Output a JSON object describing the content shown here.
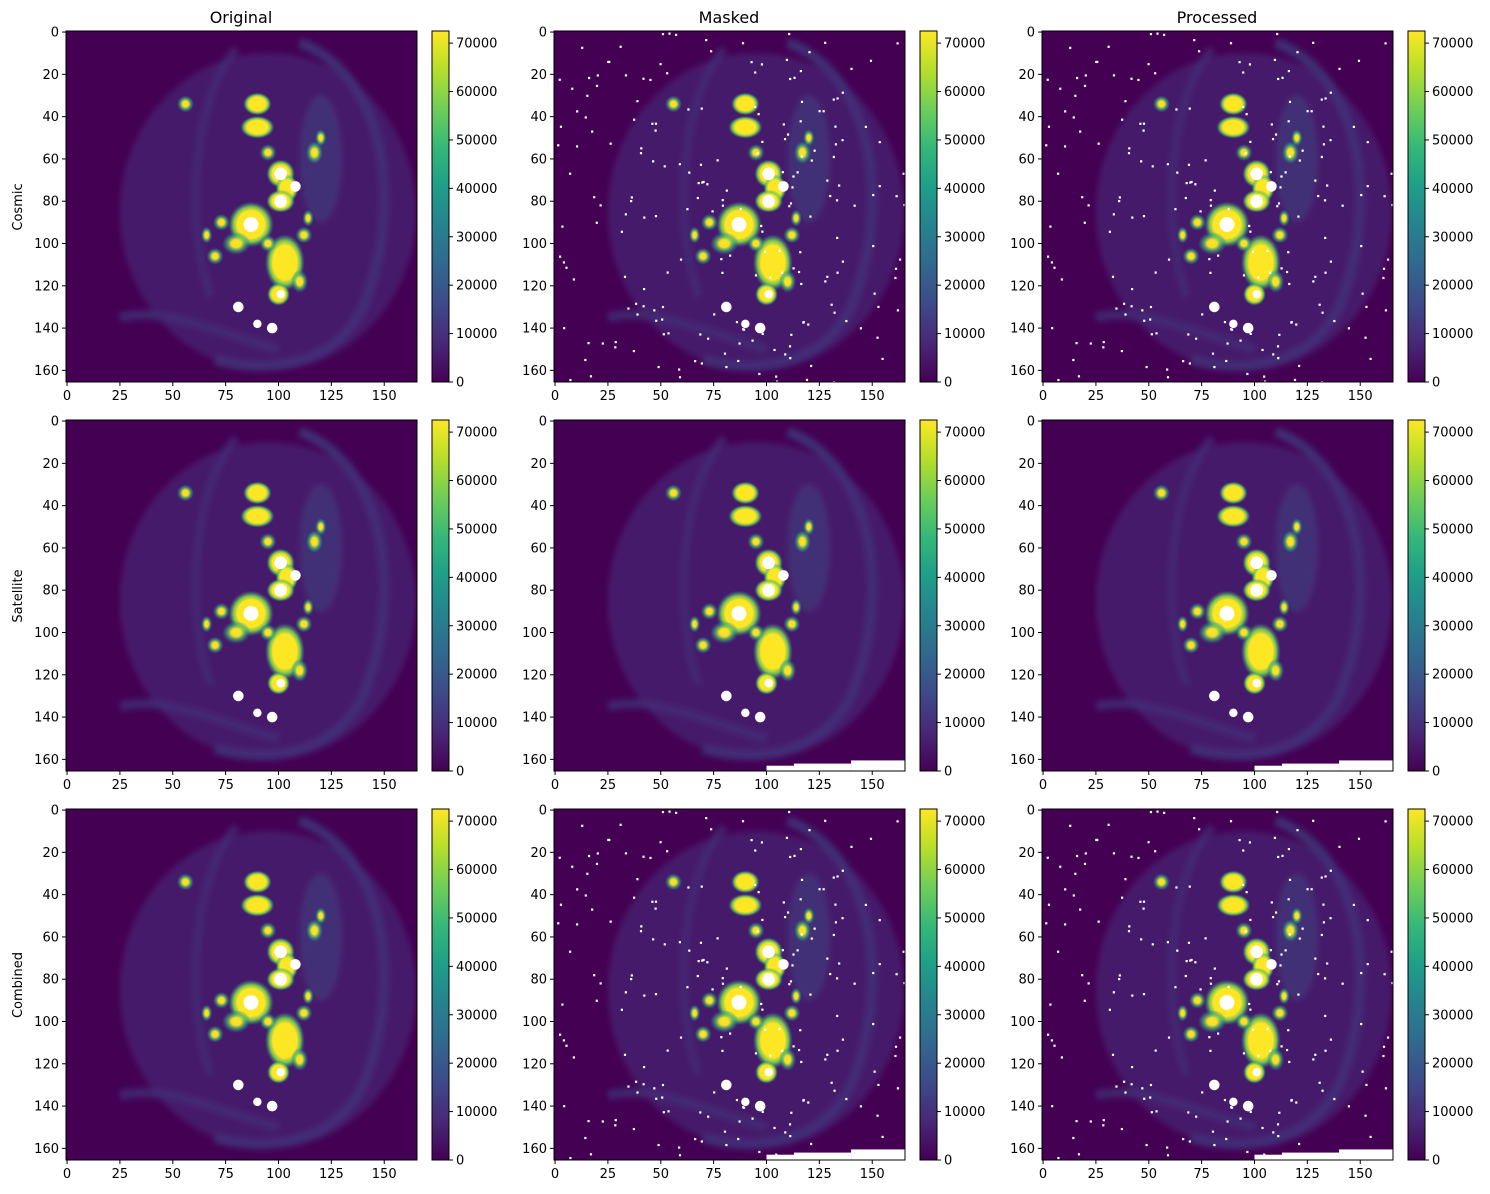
{
  "figure": {
    "column_titles": [
      "Original",
      "Masked",
      "Processed"
    ],
    "row_labels": [
      "Cosmic",
      "Satellite",
      "Combined"
    ]
  },
  "colors": {
    "colormap": "viridis",
    "masked_pixel": "#ffffff"
  },
  "chart_data": {
    "type": "heatmap",
    "image_size": [
      166,
      166
    ],
    "x_ticks": [
      0,
      25,
      50,
      75,
      100,
      125,
      150
    ],
    "y_ticks": [
      0,
      20,
      40,
      60,
      80,
      100,
      120,
      140,
      160
    ],
    "xlim": [
      -0.5,
      165.5
    ],
    "ylim": [
      165.5,
      -0.5
    ],
    "colorbar": {
      "ticks": [
        0,
        10000,
        20000,
        30000,
        40000,
        50000,
        60000,
        70000
      ],
      "range": [
        0,
        72500
      ]
    },
    "saturated_masked_blobs": [
      {
        "cx": 87,
        "cy": 91,
        "r": 3.5
      },
      {
        "cx": 101,
        "cy": 67,
        "r": 3
      },
      {
        "cx": 108,
        "cy": 73,
        "r": 2.5
      },
      {
        "cx": 101,
        "cy": 80,
        "r": 3
      },
      {
        "cx": 81,
        "cy": 130,
        "r": 2.5
      },
      {
        "cx": 90,
        "cy": 138,
        "r": 2
      },
      {
        "cx": 97,
        "cy": 140,
        "r": 2.5
      },
      {
        "cx": 101,
        "cy": 124,
        "r": 2
      }
    ],
    "satellite_trail_mask": [
      {
        "x0": 100,
        "x1": 113,
        "y0": 163,
        "y1": 165.5
      },
      {
        "x0": 113,
        "x1": 140,
        "y0": 162,
        "y1": 165.5
      },
      {
        "x0": 140,
        "x1": 165.5,
        "y0": 160.5,
        "y1": 165.5
      }
    ],
    "panels": [
      {
        "row": "Cosmic",
        "column": "Original",
        "cosmic_mask": false,
        "satellite_mask": false
      },
      {
        "row": "Cosmic",
        "column": "Masked",
        "cosmic_mask": true,
        "satellite_mask": false
      },
      {
        "row": "Cosmic",
        "column": "Processed",
        "cosmic_mask": true,
        "satellite_mask": false
      },
      {
        "row": "Satellite",
        "column": "Original",
        "cosmic_mask": false,
        "satellite_mask": false
      },
      {
        "row": "Satellite",
        "column": "Masked",
        "cosmic_mask": false,
        "satellite_mask": true
      },
      {
        "row": "Satellite",
        "column": "Processed",
        "cosmic_mask": false,
        "satellite_mask": true
      },
      {
        "row": "Combined",
        "column": "Original",
        "cosmic_mask": false,
        "satellite_mask": false
      },
      {
        "row": "Combined",
        "column": "Masked",
        "cosmic_mask": true,
        "satellite_mask": true
      },
      {
        "row": "Combined",
        "column": "Processed",
        "cosmic_mask": true,
        "satellite_mask": true
      }
    ]
  }
}
